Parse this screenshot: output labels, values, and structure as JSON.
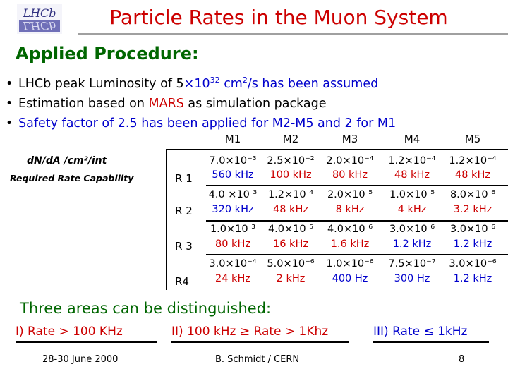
{
  "logo": {
    "top_text": "LHCb",
    "mirror_text": "LHCb",
    "bg": "#7070b8"
  },
  "title": "Particle Rates in the Muon System",
  "heading": "Applied Procedure:",
  "bullets": [
    {
      "dot": "•",
      "pre": "LHCb peak Luminosity of 5",
      "times": "×",
      "base": "10",
      "exp": "32",
      "post": " cm",
      "unit_exp": "2",
      "tail": "/s has been assumed"
    },
    {
      "dot": "•",
      "pre": "Estimation based on ",
      "hl": "MARS",
      "post": " as simulation package"
    },
    {
      "dot": "•",
      "text": "Safety factor of 2.5 has been applied for M2-M5 and 2 for M1"
    }
  ],
  "side": {
    "dnda": "dN/dA  /cm²/int",
    "required": "Required Rate Capability"
  },
  "columns": [
    "M1",
    "M2",
    "M3",
    "M4",
    "M5"
  ],
  "rows": [
    {
      "region": "R 1",
      "cells": [
        {
          "top": "7.0×10⁻³",
          "bot": "560 kHz"
        },
        {
          "top": "2.5×10⁻²",
          "bot": "100 kHz"
        },
        {
          "top": "2.0×10⁻⁴",
          "bot": "80 kHz"
        },
        {
          "top": "1.2×10⁻⁴",
          "bot": "48 kHz"
        },
        {
          "top": "1.2×10⁻⁴",
          "bot": "48 kHz"
        }
      ]
    },
    {
      "region": "R 2",
      "cells": [
        {
          "top": "4.0 ×10 ³",
          "bot": "320 kHz"
        },
        {
          "top": "1.2×10 ⁴",
          "bot": "48 kHz"
        },
        {
          "top": "2.0×10 ⁵",
          "bot": "8 kHz"
        },
        {
          "top": "1.0×10 ⁵",
          "bot": "4 kHz"
        },
        {
          "top": "8.0×10 ⁶",
          "bot": "3.2 kHz"
        }
      ]
    },
    {
      "region": "R 3",
      "cells": [
        {
          "top": "1.0×10 ³",
          "bot": "80 kHz"
        },
        {
          "top": "4.0×10 ⁵",
          "bot": "16 kHz"
        },
        {
          "top": "4.0×10 ⁶",
          "bot": "1.6 kHz"
        },
        {
          "top": "3.0×10 ⁶",
          "bot": "1.2 kHz"
        },
        {
          "top": "3.0×10 ⁶",
          "bot": "1.2 kHz"
        }
      ]
    },
    {
      "region": "R4",
      "cells": [
        {
          "top": "3.0×10⁻⁴",
          "bot": "24 kHz"
        },
        {
          "top": "5.0×10⁻⁶",
          "bot": "2 kHz"
        },
        {
          "top": "1.0×10⁻⁶",
          "bot": "400 Hz"
        },
        {
          "top": "7.5×10⁻⁷",
          "bot": "300 Hz"
        },
        {
          "top": "3.0×10⁻⁶",
          "bot": "1.2 kHz"
        }
      ]
    }
  ],
  "areas_heading": "Three areas can be distinguished:",
  "classes": [
    "I)  Rate > 100 KHz",
    "II) 100 kHz ≥ Rate > 1Khz",
    "III) Rate ≤ 1kHz"
  ],
  "footer": {
    "date": "28-30 June 2000",
    "author": "B. Schmidt / CERN",
    "page": "8"
  },
  "colors": {
    "title": "#cc0000",
    "heading": "#006600",
    "highlight_blue": "#0000cc",
    "highlight_red": "#cc0000"
  }
}
